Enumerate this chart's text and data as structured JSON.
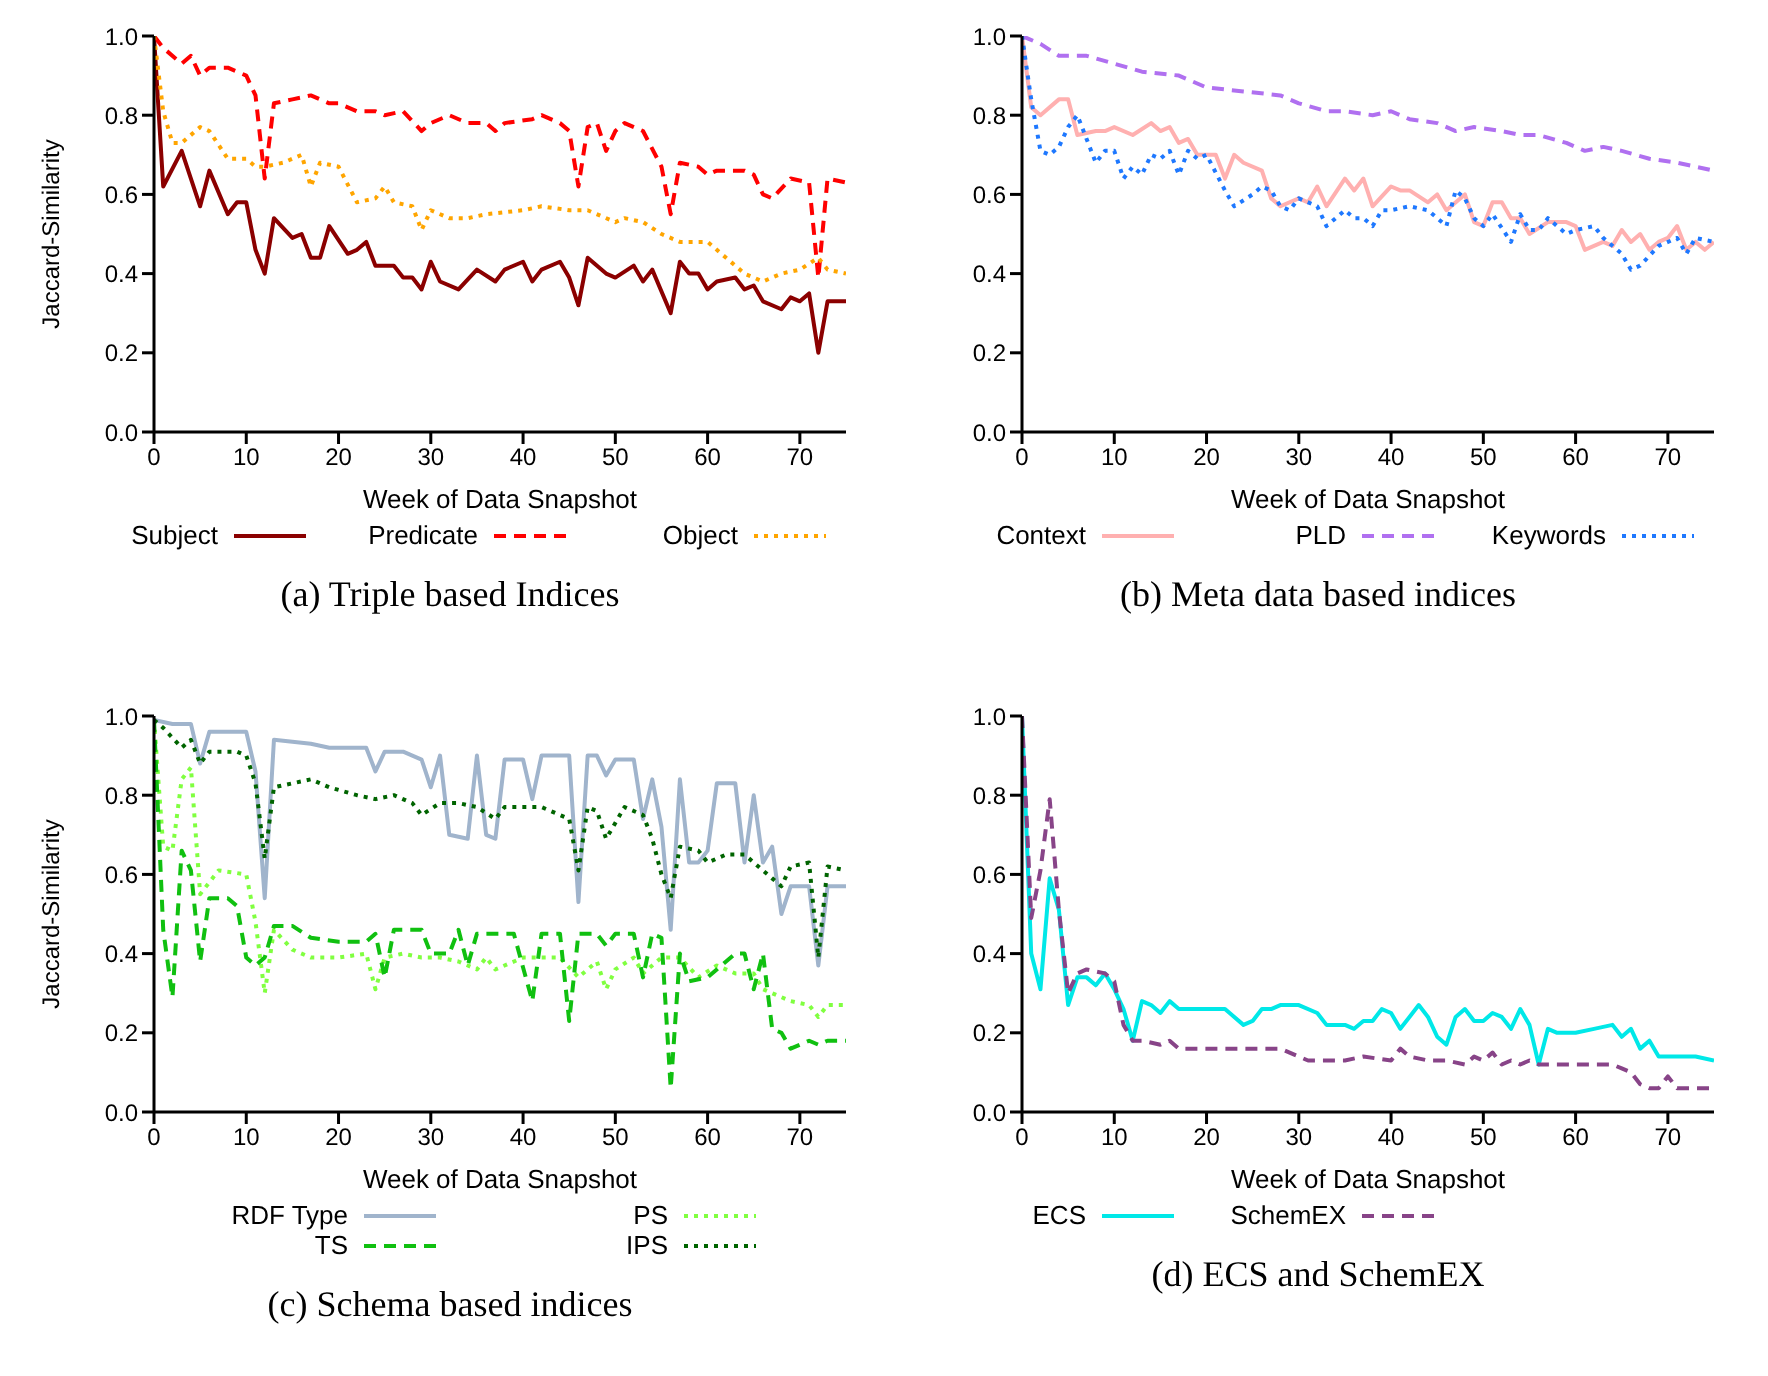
{
  "chart_data": [
    {
      "type": "line",
      "title": "(a)  Triple based Indices",
      "xlabel": "Week of Data Snapshot",
      "ylabel": "Jaccard-Similarity",
      "xlim": [
        0,
        75
      ],
      "xticks": [
        0,
        10,
        20,
        30,
        40,
        50,
        60,
        70
      ],
      "ylim": [
        0,
        1
      ],
      "yticks": [
        {
          "value": 0,
          "label": "0.0"
        },
        {
          "value": 0.2,
          "label": "0.2"
        },
        {
          "value": 0.4,
          "label": "0.4"
        },
        {
          "value": 0.6,
          "label": "0.6"
        },
        {
          "value": 0.8,
          "label": "0.8"
        },
        {
          "value": 1,
          "label": "1.0"
        }
      ],
      "legend": "bottom",
      "series": [
        {
          "name": "Subject",
          "color": "#8b0000",
          "line_style": "solid",
          "x": [
            0,
            1,
            3,
            5,
            6,
            8,
            9,
            10,
            11,
            12,
            13,
            15,
            16,
            17,
            18,
            19,
            21,
            22,
            23,
            24,
            26,
            27,
            28,
            29,
            30,
            31,
            33,
            35,
            37,
            38,
            40,
            41,
            42,
            44,
            45,
            46,
            47,
            49,
            50,
            52,
            53,
            54,
            56,
            57,
            58,
            59,
            60,
            61,
            63,
            64,
            65,
            66,
            68,
            69,
            70,
            71,
            72,
            73,
            75
          ],
          "values": [
            1.0,
            0.62,
            0.71,
            0.57,
            0.66,
            0.55,
            0.58,
            0.58,
            0.46,
            0.4,
            0.54,
            0.49,
            0.5,
            0.44,
            0.44,
            0.52,
            0.45,
            0.46,
            0.48,
            0.42,
            0.42,
            0.39,
            0.39,
            0.36,
            0.43,
            0.38,
            0.36,
            0.41,
            0.38,
            0.41,
            0.43,
            0.38,
            0.41,
            0.43,
            0.39,
            0.32,
            0.44,
            0.4,
            0.39,
            0.42,
            0.38,
            0.41,
            0.3,
            0.43,
            0.4,
            0.4,
            0.36,
            0.38,
            0.39,
            0.36,
            0.37,
            0.33,
            0.31,
            0.34,
            0.33,
            0.35,
            0.2,
            0.33,
            0.33
          ]
        },
        {
          "name": "Predicate",
          "color": "#ff0000",
          "line_style": "dashed",
          "x": [
            0,
            1,
            3,
            4,
            5,
            6,
            8,
            10,
            11,
            12,
            13,
            15,
            17,
            19,
            20,
            22,
            24,
            25,
            27,
            29,
            30,
            32,
            34,
            36,
            37,
            38,
            41,
            42,
            44,
            45,
            46,
            47,
            48,
            49,
            50,
            51,
            53,
            55,
            56,
            57,
            59,
            60,
            61,
            64,
            65,
            66,
            67,
            69,
            71,
            72,
            73,
            75
          ],
          "values": [
            1.0,
            0.97,
            0.93,
            0.95,
            0.9,
            0.92,
            0.92,
            0.9,
            0.85,
            0.64,
            0.83,
            0.84,
            0.85,
            0.83,
            0.83,
            0.81,
            0.81,
            0.8,
            0.81,
            0.76,
            0.78,
            0.8,
            0.78,
            0.78,
            0.76,
            0.78,
            0.79,
            0.8,
            0.78,
            0.76,
            0.62,
            0.77,
            0.78,
            0.71,
            0.76,
            0.78,
            0.76,
            0.67,
            0.55,
            0.68,
            0.67,
            0.65,
            0.66,
            0.66,
            0.65,
            0.6,
            0.59,
            0.64,
            0.63,
            0.39,
            0.64,
            0.63
          ]
        },
        {
          "name": "Object",
          "color": "#ffa500",
          "line_style": "dotted",
          "x": [
            0,
            1,
            2,
            3,
            5,
            6,
            8,
            10,
            11,
            12,
            14,
            16,
            17,
            18,
            20,
            22,
            24,
            25,
            26,
            28,
            29,
            30,
            32,
            34,
            36,
            40,
            42,
            45,
            47,
            50,
            51,
            53,
            55,
            57,
            60,
            62,
            64,
            66,
            68,
            70,
            72,
            73,
            75
          ],
          "values": [
            1.0,
            0.81,
            0.73,
            0.73,
            0.77,
            0.76,
            0.69,
            0.69,
            0.67,
            0.67,
            0.68,
            0.7,
            0.62,
            0.68,
            0.67,
            0.58,
            0.59,
            0.62,
            0.58,
            0.57,
            0.51,
            0.56,
            0.54,
            0.54,
            0.55,
            0.56,
            0.57,
            0.56,
            0.56,
            0.53,
            0.54,
            0.53,
            0.5,
            0.48,
            0.48,
            0.44,
            0.4,
            0.38,
            0.4,
            0.41,
            0.44,
            0.41,
            0.4
          ]
        }
      ]
    },
    {
      "type": "line",
      "title": "(b)  Meta data based indices",
      "xlabel": "Week of Data Snapshot",
      "xlim": [
        0,
        75
      ],
      "xticks": [
        0,
        10,
        20,
        30,
        40,
        50,
        60,
        70
      ],
      "ylim": [
        0,
        1
      ],
      "yticks": [
        {
          "value": 0,
          "label": "0.0"
        },
        {
          "value": 0.2,
          "label": "0.2"
        },
        {
          "value": 0.4,
          "label": "0.4"
        },
        {
          "value": 0.6,
          "label": "0.6"
        },
        {
          "value": 0.8,
          "label": "0.8"
        },
        {
          "value": 1,
          "label": "1.0"
        }
      ],
      "legend": "bottom",
      "series": [
        {
          "name": "Context",
          "color": "#ffb0b0",
          "line_style": "solid",
          "x": [
            0,
            1,
            2,
            4,
            5,
            6,
            8,
            9,
            10,
            12,
            14,
            15,
            16,
            17,
            18,
            19,
            21,
            22,
            23,
            24,
            26,
            27,
            28,
            30,
            31,
            32,
            33,
            35,
            36,
            37,
            38,
            40,
            41,
            42,
            44,
            45,
            46,
            48,
            49,
            50,
            51,
            52,
            53,
            54,
            55,
            57,
            58,
            59,
            60,
            61,
            63,
            64,
            65,
            66,
            67,
            68,
            69,
            70,
            71,
            72,
            73,
            74,
            75
          ],
          "values": [
            1.0,
            0.82,
            0.8,
            0.84,
            0.84,
            0.75,
            0.76,
            0.76,
            0.77,
            0.75,
            0.78,
            0.76,
            0.77,
            0.73,
            0.74,
            0.7,
            0.7,
            0.64,
            0.7,
            0.68,
            0.66,
            0.59,
            0.57,
            0.59,
            0.58,
            0.62,
            0.57,
            0.64,
            0.61,
            0.64,
            0.57,
            0.62,
            0.61,
            0.61,
            0.58,
            0.6,
            0.56,
            0.6,
            0.53,
            0.52,
            0.58,
            0.58,
            0.54,
            0.54,
            0.5,
            0.53,
            0.53,
            0.53,
            0.52,
            0.46,
            0.48,
            0.47,
            0.51,
            0.48,
            0.5,
            0.46,
            0.48,
            0.49,
            0.52,
            0.46,
            0.48,
            0.46,
            0.48
          ]
        },
        {
          "name": "PLD",
          "color": "#b070f0",
          "line_style": "dashed",
          "x": [
            0,
            2,
            4,
            7,
            10,
            13,
            17,
            20,
            24,
            28,
            30,
            33,
            35,
            38,
            40,
            42,
            45,
            47,
            49,
            52,
            54,
            56,
            59,
            61,
            63,
            65,
            68,
            71,
            73,
            75
          ],
          "values": [
            1.0,
            0.98,
            0.95,
            0.95,
            0.93,
            0.91,
            0.9,
            0.87,
            0.86,
            0.85,
            0.83,
            0.81,
            0.81,
            0.8,
            0.81,
            0.79,
            0.78,
            0.76,
            0.77,
            0.76,
            0.75,
            0.75,
            0.73,
            0.71,
            0.72,
            0.71,
            0.69,
            0.68,
            0.67,
            0.66
          ]
        },
        {
          "name": "Keywords",
          "color": "#1e78ff",
          "line_style": "dotted",
          "x": [
            0,
            1,
            2,
            3,
            4,
            5,
            6,
            7,
            8,
            9,
            10,
            11,
            12,
            13,
            14,
            15,
            16,
            17,
            18,
            19,
            20,
            22,
            23,
            25,
            26,
            27,
            28,
            29,
            30,
            32,
            33,
            35,
            36,
            37,
            38,
            39,
            40,
            42,
            44,
            46,
            47,
            48,
            49,
            50,
            51,
            53,
            54,
            55,
            56,
            57,
            59,
            60,
            62,
            63,
            65,
            66,
            67,
            69,
            71,
            72,
            73,
            75
          ],
          "values": [
            1.0,
            0.84,
            0.71,
            0.7,
            0.72,
            0.77,
            0.8,
            0.74,
            0.68,
            0.71,
            0.71,
            0.64,
            0.67,
            0.65,
            0.7,
            0.69,
            0.71,
            0.65,
            0.71,
            0.69,
            0.7,
            0.61,
            0.57,
            0.6,
            0.62,
            0.61,
            0.57,
            0.56,
            0.59,
            0.57,
            0.52,
            0.56,
            0.54,
            0.54,
            0.52,
            0.56,
            0.56,
            0.57,
            0.56,
            0.52,
            0.61,
            0.59,
            0.54,
            0.52,
            0.55,
            0.48,
            0.55,
            0.51,
            0.51,
            0.54,
            0.5,
            0.51,
            0.52,
            0.49,
            0.45,
            0.41,
            0.42,
            0.47,
            0.49,
            0.45,
            0.49,
            0.48
          ]
        }
      ]
    },
    {
      "type": "line",
      "title": "(c)  Schema based indices",
      "xlabel": "Week of Data Snapshot",
      "ylabel": "Jaccard-Similarity",
      "xlim": [
        0,
        75
      ],
      "xticks": [
        0,
        10,
        20,
        30,
        40,
        50,
        60,
        70
      ],
      "ylim": [
        0,
        1
      ],
      "yticks": [
        {
          "value": 0,
          "label": "0.0"
        },
        {
          "value": 0.2,
          "label": "0.2"
        },
        {
          "value": 0.4,
          "label": "0.4"
        },
        {
          "value": 0.6,
          "label": "0.6"
        },
        {
          "value": 0.8,
          "label": "0.8"
        },
        {
          "value": 1,
          "label": "1.0"
        }
      ],
      "legend": "bottom",
      "series": [
        {
          "name": "RDF Type",
          "color": "#a0b4cc",
          "line_style": "solid",
          "x": [
            0,
            2,
            4,
            5,
            6,
            8,
            10,
            11,
            12,
            13,
            17,
            19,
            23,
            24,
            25,
            27,
            29,
            30,
            31,
            32,
            34,
            35,
            36,
            37,
            38,
            40,
            41,
            42,
            44,
            45,
            46,
            47,
            48,
            49,
            50,
            52,
            53,
            54,
            55,
            56,
            57,
            58,
            59,
            60,
            61,
            63,
            64,
            65,
            66,
            67,
            68,
            69,
            71,
            72,
            73,
            75
          ],
          "values": [
            0.99,
            0.98,
            0.98,
            0.88,
            0.96,
            0.96,
            0.96,
            0.86,
            0.54,
            0.94,
            0.93,
            0.92,
            0.92,
            0.86,
            0.91,
            0.91,
            0.89,
            0.82,
            0.9,
            0.7,
            0.69,
            0.9,
            0.7,
            0.69,
            0.89,
            0.89,
            0.79,
            0.9,
            0.9,
            0.9,
            0.53,
            0.9,
            0.9,
            0.85,
            0.89,
            0.89,
            0.74,
            0.84,
            0.72,
            0.46,
            0.84,
            0.63,
            0.63,
            0.66,
            0.83,
            0.83,
            0.63,
            0.8,
            0.63,
            0.67,
            0.5,
            0.57,
            0.57,
            0.37,
            0.57,
            0.57
          ]
        },
        {
          "name": "PS",
          "color": "#80ff40",
          "line_style": "dotted",
          "x": [
            0,
            1,
            2,
            3,
            4,
            5,
            6,
            7,
            10,
            11,
            12,
            13,
            15,
            17,
            20,
            23,
            24,
            25,
            27,
            29,
            31,
            33,
            35,
            36,
            37,
            40,
            42,
            44,
            46,
            48,
            49,
            50,
            52,
            53,
            55,
            57,
            59,
            61,
            63,
            65,
            66,
            67,
            69,
            71,
            72,
            73,
            75
          ],
          "values": [
            0.99,
            0.67,
            0.66,
            0.84,
            0.87,
            0.55,
            0.58,
            0.61,
            0.6,
            0.48,
            0.3,
            0.46,
            0.41,
            0.39,
            0.39,
            0.4,
            0.31,
            0.39,
            0.4,
            0.39,
            0.39,
            0.38,
            0.36,
            0.39,
            0.36,
            0.39,
            0.39,
            0.39,
            0.34,
            0.38,
            0.31,
            0.36,
            0.39,
            0.35,
            0.39,
            0.39,
            0.34,
            0.37,
            0.35,
            0.35,
            0.31,
            0.3,
            0.28,
            0.27,
            0.24,
            0.27,
            0.27
          ]
        },
        {
          "name": "TS",
          "color": "#10c010",
          "line_style": "dashed",
          "x": [
            0,
            1,
            2,
            3,
            4,
            5,
            6,
            8,
            9,
            10,
            11,
            12,
            13,
            15,
            17,
            20,
            23,
            24,
            25,
            26,
            29,
            30,
            32,
            33,
            34,
            35,
            37,
            39,
            41,
            42,
            44,
            45,
            46,
            48,
            49,
            50,
            52,
            53,
            54,
            55,
            56,
            57,
            58,
            60,
            62,
            63,
            64,
            65,
            66,
            67,
            68,
            69,
            71,
            72,
            73,
            75
          ],
          "values": [
            0.99,
            0.46,
            0.29,
            0.66,
            0.61,
            0.38,
            0.54,
            0.54,
            0.52,
            0.39,
            0.37,
            0.39,
            0.47,
            0.47,
            0.44,
            0.43,
            0.43,
            0.45,
            0.34,
            0.46,
            0.46,
            0.4,
            0.4,
            0.46,
            0.37,
            0.45,
            0.45,
            0.45,
            0.28,
            0.45,
            0.45,
            0.23,
            0.45,
            0.45,
            0.42,
            0.45,
            0.45,
            0.34,
            0.45,
            0.44,
            0.06,
            0.4,
            0.33,
            0.34,
            0.38,
            0.4,
            0.4,
            0.31,
            0.4,
            0.21,
            0.2,
            0.16,
            0.18,
            0.17,
            0.18,
            0.18
          ]
        },
        {
          "name": "IPS",
          "color": "#006400",
          "line_style": "dotted",
          "x": [
            0,
            1,
            3,
            4,
            5,
            6,
            9,
            10,
            11,
            12,
            13,
            15,
            17,
            19,
            22,
            24,
            26,
            28,
            29,
            31,
            33,
            35,
            37,
            38,
            42,
            44,
            45,
            46,
            47,
            48,
            49,
            51,
            53,
            54,
            55,
            56,
            57,
            59,
            60,
            62,
            64,
            65,
            67,
            68,
            69,
            71,
            72,
            73,
            75
          ],
          "values": [
            0.99,
            0.97,
            0.92,
            0.94,
            0.88,
            0.91,
            0.91,
            0.9,
            0.83,
            0.64,
            0.82,
            0.83,
            0.84,
            0.82,
            0.8,
            0.79,
            0.8,
            0.78,
            0.75,
            0.78,
            0.78,
            0.77,
            0.74,
            0.77,
            0.77,
            0.75,
            0.74,
            0.61,
            0.77,
            0.76,
            0.69,
            0.77,
            0.75,
            0.69,
            0.6,
            0.54,
            0.67,
            0.66,
            0.63,
            0.65,
            0.65,
            0.63,
            0.59,
            0.57,
            0.62,
            0.63,
            0.39,
            0.62,
            0.61
          ]
        }
      ]
    },
    {
      "type": "line",
      "title": "(d)  ECS and SchemEX",
      "xlabel": "Week of Data Snapshot",
      "xlim": [
        0,
        75
      ],
      "xticks": [
        0,
        10,
        20,
        30,
        40,
        50,
        60,
        70
      ],
      "ylim": [
        0,
        1
      ],
      "yticks": [
        {
          "value": 0,
          "label": "0.0"
        },
        {
          "value": 0.2,
          "label": "0.2"
        },
        {
          "value": 0.4,
          "label": "0.4"
        },
        {
          "value": 0.6,
          "label": "0.6"
        },
        {
          "value": 0.8,
          "label": "0.8"
        },
        {
          "value": 1,
          "label": "1.0"
        }
      ],
      "legend": "bottom",
      "series": [
        {
          "name": "ECS",
          "color": "#00e8e8",
          "line_style": "solid",
          "x": [
            0,
            1,
            2,
            3,
            4,
            5,
            6,
            7,
            8,
            9,
            10,
            11,
            12,
            13,
            14,
            15,
            16,
            17,
            19,
            21,
            22,
            24,
            25,
            26,
            27,
            28,
            30,
            32,
            33,
            35,
            36,
            37,
            38,
            39,
            40,
            41,
            43,
            44,
            45,
            46,
            47,
            48,
            49,
            50,
            51,
            52,
            53,
            54,
            55,
            56,
            57,
            58,
            60,
            62,
            64,
            65,
            66,
            67,
            68,
            69,
            70,
            73,
            75
          ],
          "values": [
            1.0,
            0.4,
            0.31,
            0.59,
            0.51,
            0.27,
            0.34,
            0.34,
            0.32,
            0.35,
            0.31,
            0.26,
            0.18,
            0.28,
            0.27,
            0.25,
            0.28,
            0.26,
            0.26,
            0.26,
            0.26,
            0.22,
            0.23,
            0.26,
            0.26,
            0.27,
            0.27,
            0.25,
            0.22,
            0.22,
            0.21,
            0.23,
            0.23,
            0.26,
            0.25,
            0.21,
            0.27,
            0.24,
            0.19,
            0.17,
            0.24,
            0.26,
            0.23,
            0.23,
            0.25,
            0.24,
            0.21,
            0.26,
            0.22,
            0.12,
            0.21,
            0.2,
            0.2,
            0.21,
            0.22,
            0.19,
            0.21,
            0.16,
            0.18,
            0.14,
            0.14,
            0.14,
            0.13
          ]
        },
        {
          "name": "SchemEX",
          "color": "#884488",
          "line_style": "dashed",
          "x": [
            0,
            1,
            2,
            3,
            4,
            5,
            6,
            7,
            9,
            10,
            11,
            12,
            13,
            15,
            16,
            17,
            19,
            20,
            22,
            23,
            24,
            26,
            28,
            30,
            31,
            33,
            35,
            37,
            40,
            41,
            42,
            44,
            46,
            48,
            49,
            50,
            51,
            52,
            53,
            54,
            55,
            56,
            58,
            60,
            61,
            62,
            64,
            65,
            66,
            67,
            68,
            69,
            70,
            71,
            72,
            73,
            75
          ],
          "values": [
            1.0,
            0.49,
            0.61,
            0.79,
            0.51,
            0.3,
            0.35,
            0.36,
            0.35,
            0.33,
            0.22,
            0.18,
            0.18,
            0.17,
            0.18,
            0.16,
            0.16,
            0.16,
            0.16,
            0.16,
            0.16,
            0.16,
            0.16,
            0.14,
            0.13,
            0.13,
            0.13,
            0.14,
            0.13,
            0.16,
            0.14,
            0.13,
            0.13,
            0.12,
            0.14,
            0.13,
            0.15,
            0.12,
            0.13,
            0.12,
            0.13,
            0.12,
            0.12,
            0.12,
            0.12,
            0.12,
            0.12,
            0.11,
            0.1,
            0.07,
            0.06,
            0.06,
            0.09,
            0.06,
            0.06,
            0.06,
            0.06
          ]
        }
      ]
    }
  ]
}
